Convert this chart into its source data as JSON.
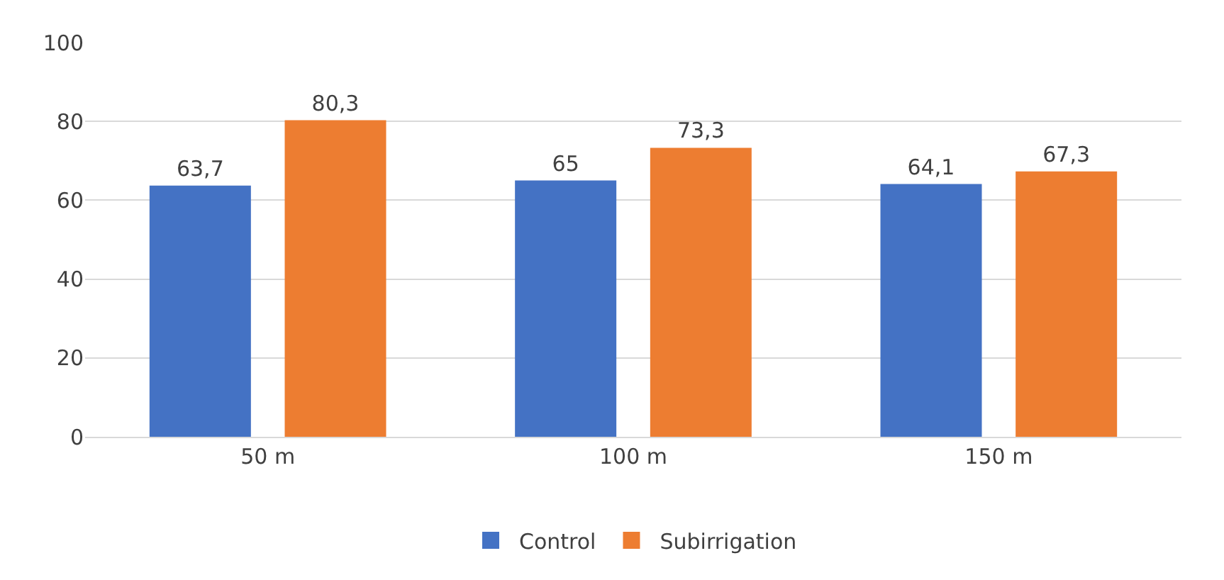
{
  "chart_data": {
    "type": "bar",
    "categories": [
      "50 m",
      "100 m",
      "150 m"
    ],
    "series": [
      {
        "name": "Control",
        "color": "#4472c4",
        "values": [
          63.7,
          65,
          64.1
        ],
        "value_labels": [
          "63,7",
          "65",
          "64,1"
        ]
      },
      {
        "name": "Subirrigation",
        "color": "#ed7d31",
        "values": [
          80.3,
          73.3,
          67.3
        ],
        "value_labels": [
          "80,3",
          "73,3",
          "67,3"
        ]
      }
    ],
    "ylim": [
      0,
      100
    ],
    "yticks": [
      0,
      20,
      40,
      60,
      80,
      100
    ],
    "grid": "y",
    "legend": "bottom"
  }
}
